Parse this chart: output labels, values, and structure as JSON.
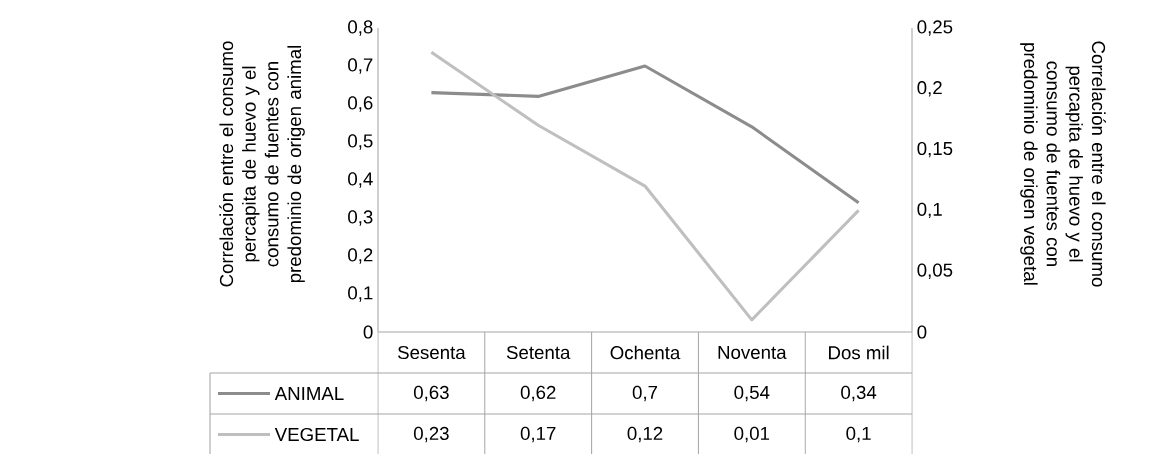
{
  "chart_data": {
    "type": "line",
    "ylabel": "Correlación entre el consumo percapita de huevo y el consumo de fuentes con predominio de origen animal",
    "y2label": "Correlación entre el consumo percapita de huevo y el consumo de fuentes con predominio de origen vegetal",
    "categories": [
      "Sesenta",
      "Setenta",
      "Ochenta",
      "Noventa",
      "Dos mil"
    ],
    "series": [
      {
        "name": "ANIMAL",
        "color": "#8c8c8c",
        "values": [
          0.63,
          0.62,
          0.7,
          0.54,
          0.34
        ],
        "value_labels": [
          "0,63",
          "0,62",
          "0,7",
          "0,54",
          "0,34"
        ]
      },
      {
        "name": "VEGETAL",
        "color": "#bfbfbf",
        "axis": "y2",
        "values": [
          0.23,
          0.17,
          0.12,
          0.01,
          0.1
        ],
        "value_labels": [
          "0,23",
          "0,17",
          "0,12",
          "0,01",
          "0,1"
        ]
      }
    ],
    "ylim": [
      0,
      0.8
    ],
    "yticks": [
      0,
      {
        "value": 0.1,
        "label": "0,1"
      },
      {
        "value": 0.2,
        "label": "0,2"
      },
      {
        "value": 0.3,
        "label": "0,3"
      },
      {
        "value": 0.4,
        "label": "0,4"
      },
      {
        "value": 0.5,
        "label": "0,5"
      },
      {
        "value": 0.6,
        "label": "0,6"
      },
      {
        "value": 0.7,
        "label": "0,7"
      },
      {
        "value": 0.8,
        "label": "0,8"
      }
    ],
    "y2lim": [
      0,
      0.25
    ],
    "y2ticks": [
      0,
      {
        "value": 0.05,
        "label": "0,05"
      },
      {
        "value": 0.1,
        "label": "0,1"
      },
      {
        "value": 0.15,
        "label": "0,15"
      },
      {
        "value": 0.2,
        "label": "0,2"
      },
      {
        "value": 0.25,
        "label": "0,25"
      }
    ],
    "marker": "none",
    "line_style": "solid",
    "legend": "bottom left"
  }
}
